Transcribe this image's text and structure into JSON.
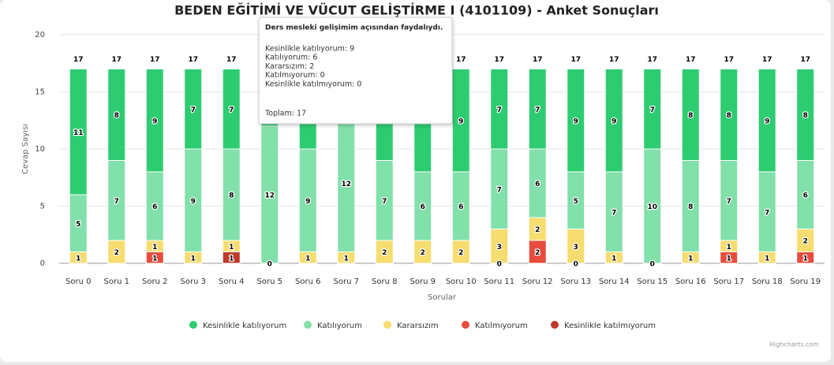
{
  "chart_data": {
    "type": "bar",
    "stacked": true,
    "title": "BEDEN EĞİTİMİ VE VÜCUT GELİŞTİRME I (4101109) - Anket Sonuçları",
    "x_label": "Sorular",
    "y_label": "Cevap Sayısı",
    "credits": "Highcharts.com",
    "categories": [
      "Soru 0",
      "Soru 1",
      "Soru 2",
      "Soru 3",
      "Soru 4",
      "Soru 5",
      "Soru 6",
      "Soru 7",
      "Soru 8",
      "Soru 9",
      "Soru 10",
      "Soru 11",
      "Soru 12",
      "Soru 13",
      "Soru 14",
      "Soru 15",
      "Soru 16",
      "Soru 17",
      "Soru 18",
      "Soru 19"
    ],
    "ylim": [
      0,
      20
    ],
    "yticks": [
      0,
      5,
      10,
      15,
      20
    ],
    "grid": true,
    "legend": "bottom",
    "series": [
      {
        "name": "Kesinlikle katılıyorum",
        "color": "#2ecc71",
        "values": [
          11,
          8,
          9,
          7,
          7,
          5,
          7,
          4,
          8,
          9,
          9,
          7,
          7,
          9,
          9,
          7,
          8,
          8,
          9,
          8
        ]
      },
      {
        "name": "Katılıyorum",
        "color": "#82e0aa",
        "values": [
          5,
          7,
          6,
          9,
          8,
          12,
          9,
          12,
          7,
          6,
          6,
          7,
          6,
          5,
          7,
          10,
          8,
          7,
          7,
          6
        ]
      },
      {
        "name": "Kararsızım",
        "color": "#f7dc6f",
        "values": [
          1,
          2,
          1,
          1,
          1,
          0,
          1,
          1,
          2,
          2,
          2,
          3,
          2,
          3,
          1,
          null,
          1,
          1,
          1,
          2
        ]
      },
      {
        "name": "Katılmıyorum",
        "color": "#e74c3c",
        "values": [
          null,
          null,
          1,
          null,
          null,
          null,
          null,
          null,
          null,
          null,
          null,
          0,
          2,
          0,
          null,
          0,
          null,
          1,
          null,
          1
        ]
      },
      {
        "name": "Kesinlikle katılmıyorum",
        "color": "#c0392b",
        "values": [
          null,
          null,
          null,
          null,
          1,
          null,
          null,
          null,
          null,
          null,
          null,
          null,
          null,
          null,
          null,
          null,
          null,
          null,
          null,
          null
        ]
      }
    ],
    "totals": [
      17,
      17,
      17,
      17,
      17,
      17,
      17,
      17,
      17,
      17,
      17,
      17,
      17,
      17,
      17,
      17,
      17,
      17,
      17,
      17
    ],
    "tooltip": {
      "title": "Ders mesleki gelişimim açısından faydalıydı.",
      "lines": [
        "Kesinlikle katılıyorum: 9",
        "Katılıyorum: 6",
        "Kararsızım: 2",
        "Katılmıyorum: 0",
        "Kesinlikle katılmıyorum: 0"
      ],
      "total": "Toplam: 17"
    }
  }
}
